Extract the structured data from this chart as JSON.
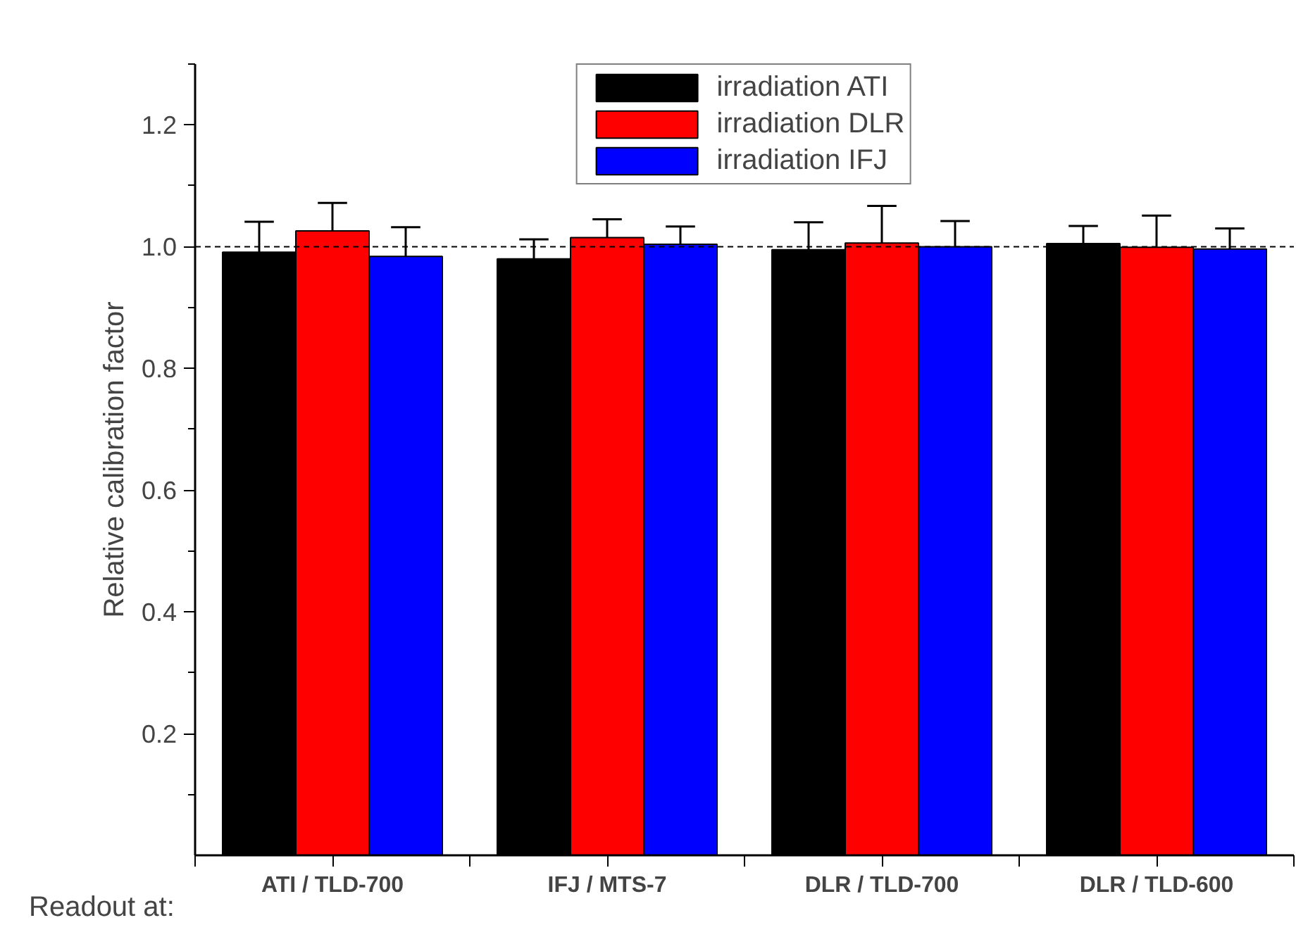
{
  "chart_data": {
    "type": "bar",
    "categories": [
      "ATI / TLD-700",
      "IFJ / MTS-7",
      "DLR / TLD-700",
      "DLR / TLD-600"
    ],
    "series": [
      {
        "name": "irradiation ATI",
        "color": "#000000",
        "values": [
          0.991,
          0.98,
          0.995,
          1.005
        ],
        "errors": [
          [
            0.991,
            1.041
          ],
          [
            0.98,
            1.012
          ],
          [
            0.995,
            1.04
          ],
          [
            1.005,
            1.034
          ]
        ]
      },
      {
        "name": "irradiation DLR",
        "color": "#ff0000",
        "values": [
          1.026,
          1.015,
          1.006,
          0.999
        ],
        "errors": [
          [
            1.026,
            1.072
          ],
          [
            1.015,
            1.045
          ],
          [
            1.006,
            1.067
          ],
          [
            0.999,
            1.051
          ]
        ]
      },
      {
        "name": "irradiation IFJ",
        "color": "#0000ff",
        "values": [
          0.984,
          1.004,
          1.0,
          0.996
        ],
        "errors": [
          [
            0.984,
            1.032
          ],
          [
            1.004,
            1.033
          ],
          [
            1.0,
            1.042
          ],
          [
            0.996,
            1.03
          ]
        ]
      }
    ],
    "ylabel": "Relative calibration factor",
    "ylim": [
      0,
      1.3
    ],
    "yticks": [
      {
        "value": 0.1,
        "label": null
      },
      {
        "value": 0.2,
        "label": "0.2"
      },
      {
        "value": 0.3,
        "label": null
      },
      {
        "value": 0.4,
        "label": "0.4"
      },
      {
        "value": 0.5,
        "label": null
      },
      {
        "value": 0.6,
        "label": "0.6"
      },
      {
        "value": 0.7,
        "label": null
      },
      {
        "value": 0.8,
        "label": "0.8"
      },
      {
        "value": 0.9,
        "label": null
      },
      {
        "value": 1.0,
        "label": "1.0"
      },
      {
        "value": 1.1,
        "label": null
      },
      {
        "value": 1.2,
        "label": "1.2"
      },
      {
        "value": 1.3,
        "label": null
      }
    ],
    "ref_lines": [
      {
        "axis": "y",
        "value": 1.0,
        "label": null,
        "color": "#000000",
        "line_style": "dashed"
      }
    ],
    "annotations": [
      "Readout at:"
    ],
    "legend": "top",
    "grid": false
  }
}
